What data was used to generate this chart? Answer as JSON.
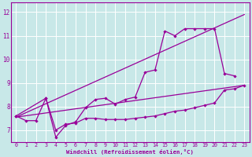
{
  "xlabel": "Windchill (Refroidissement éolien,°C)",
  "background_color": "#c8e8e8",
  "grid_color": "#b8d8d8",
  "line_color": "#990099",
  "xlim": [
    -0.5,
    23.5
  ],
  "ylim": [
    6.5,
    12.4
  ],
  "yticks": [
    7,
    8,
    9,
    10,
    11,
    12
  ],
  "xticks": [
    0,
    1,
    2,
    3,
    4,
    5,
    6,
    7,
    8,
    9,
    10,
    11,
    12,
    13,
    14,
    15,
    16,
    17,
    18,
    19,
    20,
    21,
    22,
    23
  ],
  "line1_x": [
    0,
    1,
    2,
    3,
    4,
    5,
    6,
    7,
    8,
    9,
    10,
    11,
    12,
    13,
    14,
    15,
    16,
    17,
    18,
    19,
    20,
    21,
    22,
    23
  ],
  "line1_y": [
    7.6,
    7.4,
    7.4,
    8.35,
    7.0,
    7.25,
    7.3,
    7.5,
    7.5,
    7.45,
    7.45,
    7.45,
    7.5,
    7.55,
    7.6,
    7.7,
    7.8,
    7.85,
    7.95,
    8.05,
    8.15,
    8.7,
    8.75,
    8.9
  ],
  "line2_x": [
    0,
    3,
    4,
    5,
    6,
    7,
    8,
    9,
    10,
    11,
    12,
    13,
    14,
    15,
    16,
    17,
    18,
    19,
    20,
    21,
    22
  ],
  "line2_y": [
    7.6,
    8.35,
    6.7,
    7.2,
    7.35,
    7.95,
    8.3,
    8.35,
    8.1,
    8.3,
    8.4,
    9.45,
    9.55,
    11.2,
    11.0,
    11.3,
    11.3,
    11.3,
    11.3,
    9.4,
    9.3
  ],
  "line3_x": [
    0,
    23
  ],
  "line3_y": [
    7.55,
    11.9
  ],
  "line4_x": [
    0,
    23
  ],
  "line4_y": [
    7.55,
    8.9
  ]
}
